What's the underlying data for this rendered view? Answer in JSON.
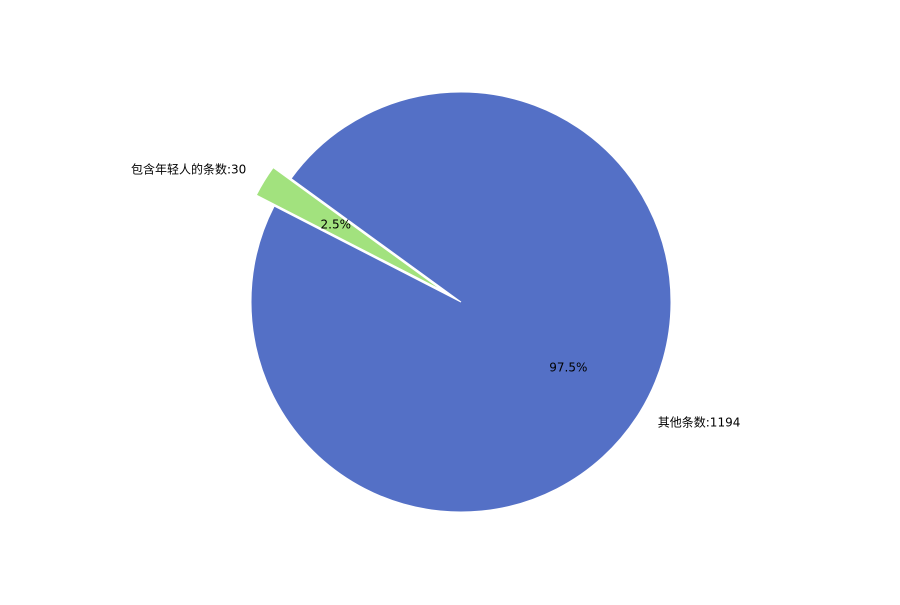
{
  "chart_data": {
    "type": "pie",
    "slices": [
      {
        "label": "包含年轻人的条数:30",
        "value": 30,
        "percent_label": "2.5%",
        "color": "#a2e27e",
        "exploded": true
      },
      {
        "label": "其他条数:1194",
        "value": 1194,
        "percent_label": "97.5%",
        "color": "#5470c6",
        "exploded": false
      }
    ]
  }
}
